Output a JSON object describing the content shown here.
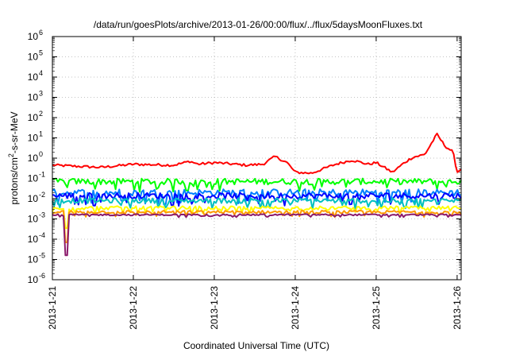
{
  "chart_data": {
    "type": "line",
    "title": "/data/run/goesPlots/archive/2013-01-26/00:00/flux/../flux/5daysMoonFluxes.txt",
    "xlabel": "Coordinated Universal Time (UTC)",
    "ylabel": {
      "prefix": "protons/cm",
      "sup": "2",
      "suffix": "-s-sr-MeV"
    },
    "yscale": "log",
    "ylim": [
      1e-06,
      1000000.0
    ],
    "xlim": [
      0,
      5.05
    ],
    "grid": true,
    "y_ticks": [
      {
        "exp": -6,
        "label": "10",
        "sup": "-6"
      },
      {
        "exp": -5,
        "label": "10",
        "sup": "-5"
      },
      {
        "exp": -4,
        "label": "10",
        "sup": "-4"
      },
      {
        "exp": -3,
        "label": "10",
        "sup": "-3"
      },
      {
        "exp": -2,
        "label": "10",
        "sup": "-2"
      },
      {
        "exp": -1,
        "label": "10",
        "sup": "-1"
      },
      {
        "exp": 0,
        "label": "10",
        "sup": "0"
      },
      {
        "exp": 1,
        "label": "10",
        "sup": "1"
      },
      {
        "exp": 2,
        "label": "10",
        "sup": "2"
      },
      {
        "exp": 3,
        "label": "10",
        "sup": "3"
      },
      {
        "exp": 4,
        "label": "10",
        "sup": "4"
      },
      {
        "exp": 5,
        "label": "10",
        "sup": "5"
      },
      {
        "exp": 6,
        "label": "10",
        "sup": "6"
      }
    ],
    "x_ticks": [
      {
        "day": 0,
        "label": "2013-1-21"
      },
      {
        "day": 1,
        "label": "2013-1-22"
      },
      {
        "day": 2,
        "label": "2013-1-23"
      },
      {
        "day": 3,
        "label": "2013-1-24"
      },
      {
        "day": 4,
        "label": "2013-1-25"
      },
      {
        "day": 5,
        "label": "2013-1-26"
      }
    ],
    "series": [
      {
        "color": "#ff0000",
        "base": 0.45,
        "noise": 0.25,
        "kp": [
          [
            0,
            0.45
          ],
          [
            0.6,
            0.35
          ],
          [
            1.0,
            0.5
          ],
          [
            1.5,
            0.45
          ],
          [
            1.7,
            0.7
          ],
          [
            1.8,
            0.5
          ],
          [
            2.0,
            0.6
          ],
          [
            2.4,
            0.45
          ],
          [
            2.6,
            0.5
          ],
          [
            2.75,
            1.2
          ],
          [
            2.9,
            0.6
          ],
          [
            3.0,
            0.2
          ],
          [
            3.2,
            0.18
          ],
          [
            3.5,
            0.5
          ],
          [
            3.7,
            0.8
          ],
          [
            3.9,
            0.5
          ],
          [
            4.0,
            0.6
          ],
          [
            4.2,
            0.2
          ],
          [
            4.35,
            0.6
          ],
          [
            4.45,
            1.1
          ],
          [
            4.6,
            1.5
          ],
          [
            4.75,
            15
          ],
          [
            4.85,
            4
          ],
          [
            4.95,
            2
          ],
          [
            5.0,
            0.2
          ],
          [
            5.05,
            0.3
          ]
        ]
      },
      {
        "color": "#00ff00",
        "base": 0.07,
        "noise": 0.6,
        "kp": [
          [
            0,
            0.07
          ],
          [
            5.05,
            0.07
          ]
        ]
      },
      {
        "color": "#007fff",
        "base": 0.02,
        "noise": 0.7,
        "kp": [
          [
            0,
            0.02
          ],
          [
            5.05,
            0.02
          ]
        ]
      },
      {
        "color": "#0000ff",
        "base": 0.014,
        "noise": 0.6,
        "kp": [
          [
            0,
            0.014
          ],
          [
            5.05,
            0.014
          ]
        ]
      },
      {
        "color": "#00c0c0",
        "base": 0.008,
        "noise": 0.5,
        "kp": [
          [
            0,
            0.008
          ],
          [
            5.05,
            0.008
          ]
        ]
      },
      {
        "color": "#ffff00",
        "base": 0.0035,
        "noise": 0.35,
        "kp": [
          [
            0,
            0.0035
          ],
          [
            5.05,
            0.0035
          ]
        ]
      },
      {
        "color": "#ff9900",
        "base": 0.0022,
        "noise": 0.3,
        "kp": [
          [
            0,
            0.0022
          ],
          [
            5.05,
            0.0022
          ]
        ]
      },
      {
        "color": "#8b1a6b",
        "base": 0.0016,
        "noise": 0.15,
        "kp": [
          [
            0,
            0.0016
          ],
          [
            5.05,
            0.0016
          ]
        ]
      }
    ]
  }
}
